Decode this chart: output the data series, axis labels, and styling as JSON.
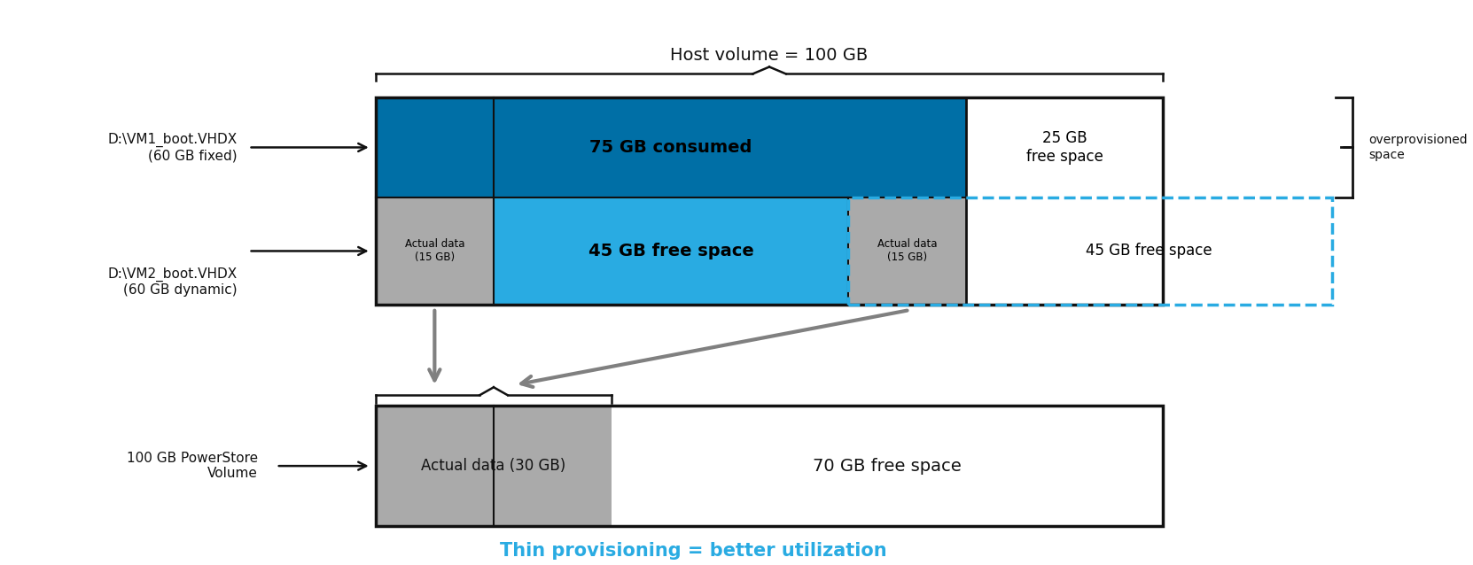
{
  "fig_width": 16.62,
  "fig_height": 6.38,
  "bg_color": "#ffffff",
  "title_host": "Host volume = 100 GB",
  "title_bottom": "Thin provisioning = better utilization",
  "title_bottom_color": "#29ABE2",
  "label_vm1": "D:\\VM1_boot.VHDX\n(60 GB fixed)",
  "label_vm2": "D:\\VM2_boot.VHDX\n(60 GB dynamic)",
  "label_powerstore": "100 GB PowerStore\nVolume",
  "color_dark_blue": "#006fa6",
  "color_light_blue": "#29ABE2",
  "color_gray": "#AAAAAA",
  "color_dashed_cyan": "#29ABE2",
  "color_arrow_gray": "#808080",
  "color_black": "#111111",
  "note_overprovisioned": "overprovisioned\nspace",
  "label_75_consumed": "75 GB consumed",
  "label_45_free_top": "45 GB free space",
  "label_25_free": "25 GB\nfree space",
  "label_actual_left": "Actual data\n(15 GB)",
  "label_actual_right": "Actual data\n(15 GB)",
  "label_45_free_dashed": "45 GB free space",
  "label_actual_ps": "Actual data (30 GB)",
  "label_70_free": "70 GB free space"
}
